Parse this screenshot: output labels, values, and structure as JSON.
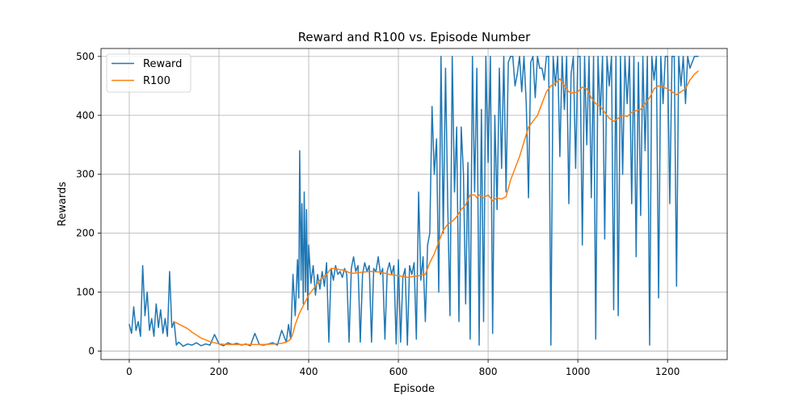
{
  "chart_data": {
    "type": "line",
    "title": "Reward and R100 vs. Episode Number",
    "xlabel": "Episode",
    "ylabel": "Rewards",
    "xlim": [
      -63,
      1333
    ],
    "ylim": [
      -14.5,
      513.5
    ],
    "xticks": [
      0,
      200,
      400,
      600,
      800,
      1000,
      1200
    ],
    "yticks": [
      0,
      100,
      200,
      300,
      400,
      500
    ],
    "grid": true,
    "legend_position": "top-left",
    "series": [
      {
        "name": "Reward",
        "color": "#1f77b4",
        "x": [
          0,
          5,
          10,
          15,
          20,
          25,
          30,
          35,
          40,
          45,
          50,
          55,
          60,
          65,
          70,
          75,
          80,
          85,
          90,
          95,
          100,
          105,
          110,
          115,
          120,
          130,
          140,
          150,
          160,
          170,
          180,
          190,
          200,
          210,
          220,
          230,
          240,
          250,
          260,
          270,
          280,
          290,
          300,
          310,
          320,
          330,
          340,
          350,
          355,
          360,
          365,
          370,
          375,
          378,
          380,
          383,
          385,
          388,
          390,
          393,
          395,
          398,
          400,
          405,
          410,
          415,
          420,
          425,
          430,
          435,
          440,
          445,
          450,
          455,
          460,
          465,
          470,
          475,
          480,
          485,
          490,
          495,
          500,
          505,
          510,
          515,
          520,
          525,
          530,
          535,
          540,
          545,
          550,
          555,
          560,
          565,
          570,
          575,
          580,
          585,
          590,
          595,
          600,
          605,
          610,
          615,
          620,
          625,
          630,
          635,
          640,
          645,
          650,
          655,
          660,
          665,
          670,
          675,
          680,
          685,
          690,
          695,
          700,
          705,
          710,
          715,
          720,
          725,
          730,
          735,
          740,
          745,
          750,
          755,
          760,
          765,
          770,
          775,
          780,
          785,
          790,
          795,
          800,
          805,
          810,
          815,
          820,
          825,
          830,
          835,
          840,
          845,
          850,
          855,
          860,
          865,
          870,
          875,
          880,
          885,
          890,
          895,
          900,
          905,
          910,
          915,
          920,
          925,
          930,
          935,
          940,
          945,
          950,
          955,
          960,
          965,
          970,
          975,
          980,
          985,
          990,
          995,
          1000,
          1005,
          1010,
          1015,
          1020,
          1025,
          1030,
          1035,
          1040,
          1045,
          1050,
          1055,
          1060,
          1065,
          1070,
          1075,
          1080,
          1085,
          1090,
          1095,
          1100,
          1105,
          1110,
          1115,
          1120,
          1125,
          1130,
          1135,
          1140,
          1145,
          1150,
          1155,
          1160,
          1165,
          1170,
          1175,
          1180,
          1185,
          1190,
          1195,
          1200,
          1205,
          1210,
          1215,
          1220,
          1225,
          1230,
          1235,
          1240,
          1245,
          1250,
          1260,
          1268
        ],
        "y": [
          45,
          30,
          75,
          35,
          50,
          25,
          145,
          60,
          100,
          35,
          55,
          25,
          80,
          40,
          70,
          30,
          55,
          25,
          135,
          40,
          50,
          10,
          15,
          12,
          8,
          12,
          10,
          14,
          9,
          12,
          10,
          28,
          12,
          9,
          14,
          11,
          13,
          10,
          12,
          9,
          30,
          11,
          10,
          12,
          14,
          10,
          35,
          15,
          45,
          20,
          130,
          60,
          155,
          90,
          340,
          120,
          250,
          80,
          270,
          100,
          240,
          70,
          180,
          115,
          145,
          95,
          130,
          105,
          135,
          110,
          150,
          15,
          140,
          120,
          145,
          130,
          135,
          125,
          140,
          130,
          15,
          140,
          160,
          135,
          145,
          15,
          130,
          150,
          135,
          145,
          15,
          140,
          135,
          160,
          130,
          140,
          20,
          135,
          150,
          130,
          145,
          12,
          155,
          15,
          125,
          140,
          10,
          145,
          130,
          150,
          20,
          270,
          120,
          160,
          50,
          180,
          200,
          415,
          300,
          360,
          100,
          500,
          200,
          480,
          250,
          60,
          500,
          270,
          380,
          50,
          380,
          300,
          80,
          320,
          20,
          500,
          270,
          480,
          10,
          410,
          50,
          500,
          320,
          500,
          30,
          400,
          240,
          480,
          310,
          500,
          270,
          490,
          500,
          500,
          450,
          470,
          500,
          440,
          500,
          420,
          260,
          490,
          500,
          430,
          500,
          480,
          480,
          460,
          500,
          500,
          10,
          500,
          450,
          500,
          330,
          500,
          410,
          500,
          250,
          470,
          500,
          310,
          500,
          500,
          180,
          500,
          350,
          500,
          260,
          500,
          20,
          500,
          400,
          500,
          190,
          500,
          450,
          500,
          70,
          500,
          60,
          500,
          300,
          500,
          420,
          500,
          250,
          500,
          160,
          490,
          230,
          500,
          340,
          500,
          10,
          500,
          460,
          500,
          90,
          500,
          420,
          500,
          500,
          250,
          500,
          500,
          110,
          500,
          450,
          500,
          420,
          500,
          480,
          500,
          500
        ]
      },
      {
        "name": "R100",
        "color": "#ff7f0e",
        "x": [
          99,
          110,
          120,
          130,
          140,
          150,
          160,
          170,
          180,
          190,
          200,
          220,
          240,
          260,
          280,
          300,
          320,
          340,
          350,
          360,
          365,
          370,
          375,
          380,
          390,
          400,
          410,
          420,
          430,
          440,
          450,
          460,
          470,
          480,
          490,
          500,
          520,
          540,
          560,
          580,
          600,
          620,
          640,
          660,
          670,
          680,
          690,
          700,
          710,
          720,
          730,
          740,
          750,
          760,
          770,
          775,
          780,
          790,
          800,
          810,
          820,
          830,
          840,
          850,
          860,
          870,
          880,
          890,
          900,
          910,
          920,
          930,
          940,
          950,
          960,
          970,
          980,
          990,
          1000,
          1010,
          1020,
          1030,
          1040,
          1050,
          1060,
          1070,
          1080,
          1090,
          1100,
          1110,
          1120,
          1130,
          1140,
          1150,
          1160,
          1170,
          1180,
          1190,
          1200,
          1210,
          1220,
          1230,
          1240,
          1250,
          1260,
          1268
        ],
        "y": [
          50,
          46,
          42,
          38,
          32,
          27,
          22,
          19,
          16,
          14,
          12,
          11,
          11,
          11,
          11,
          11,
          12,
          13,
          15,
          20,
          30,
          45,
          55,
          65,
          80,
          95,
          105,
          115,
          125,
          130,
          140,
          140,
          138,
          137,
          133,
          132,
          134,
          135,
          134,
          130,
          128,
          125,
          127,
          130,
          150,
          165,
          185,
          205,
          215,
          220,
          228,
          240,
          248,
          265,
          265,
          260,
          265,
          260,
          265,
          255,
          260,
          258,
          262,
          290,
          310,
          330,
          355,
          380,
          390,
          400,
          420,
          440,
          450,
          455,
          462,
          450,
          440,
          438,
          440,
          448,
          445,
          430,
          420,
          415,
          405,
          395,
          390,
          395,
          400,
          398,
          405,
          408,
          410,
          420,
          430,
          445,
          450,
          448,
          445,
          440,
          435,
          440,
          445,
          460,
          470,
          475
        ]
      }
    ]
  }
}
